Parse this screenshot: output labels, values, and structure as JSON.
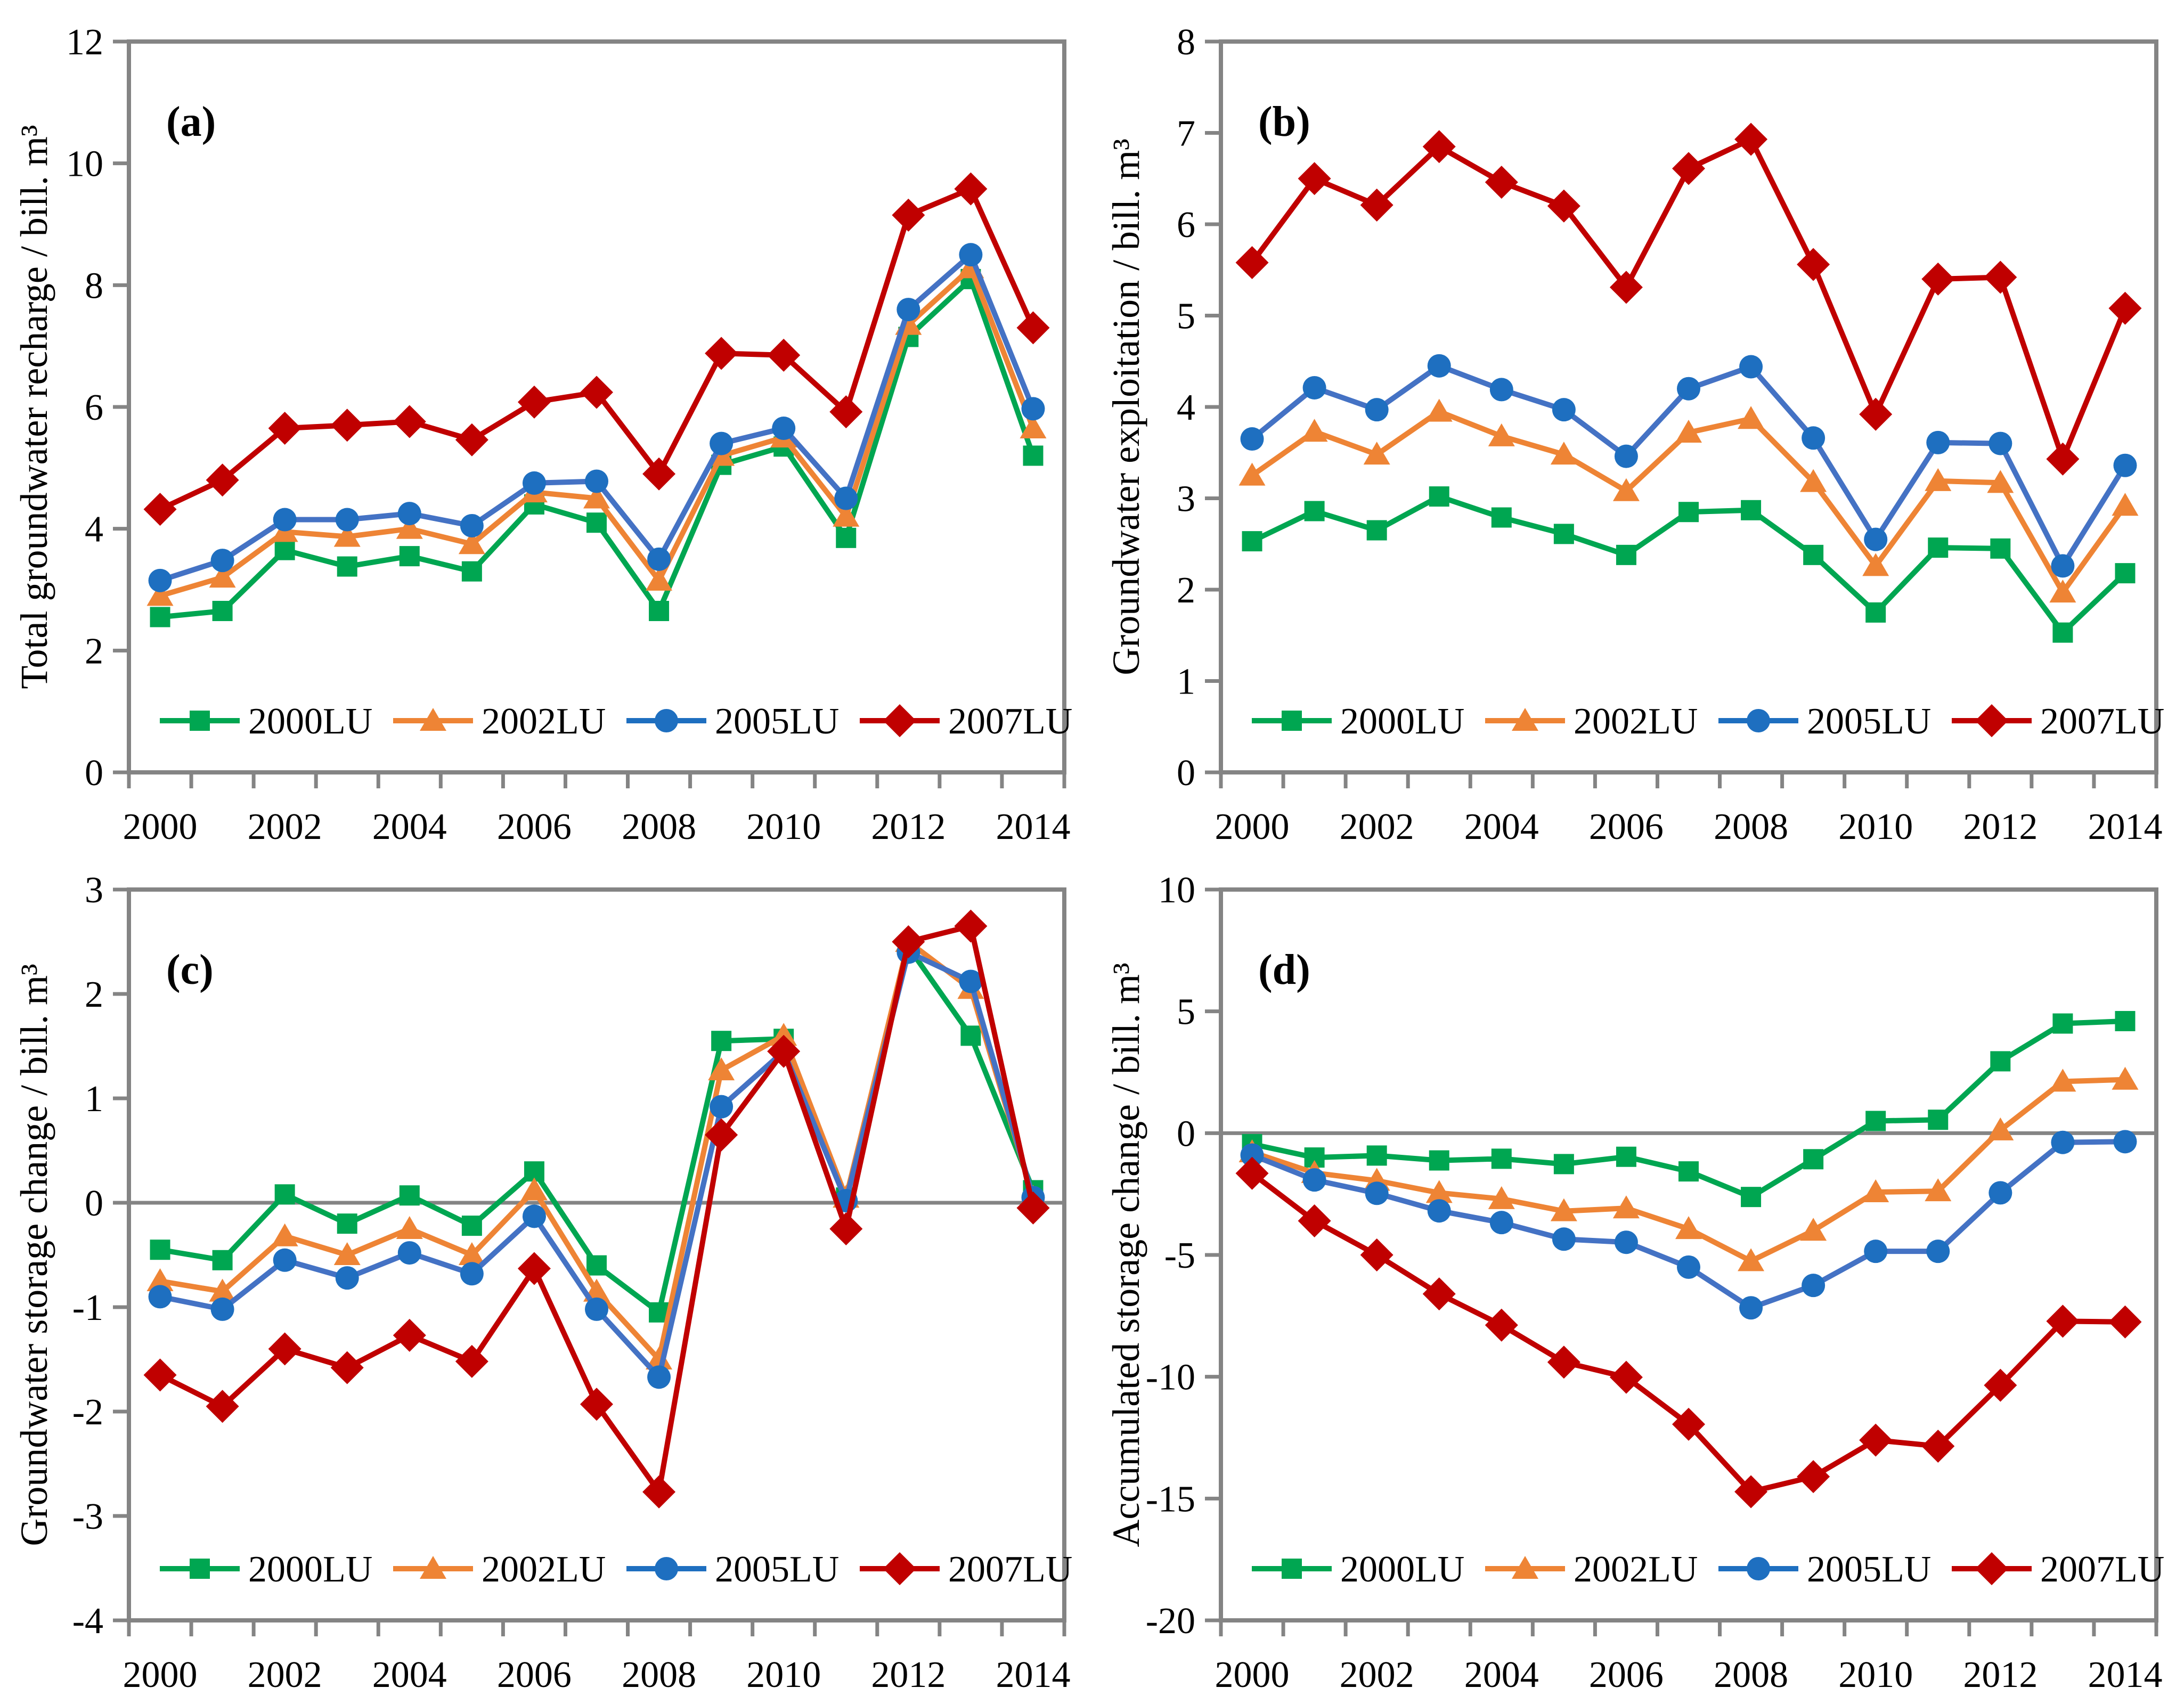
{
  "figure": {
    "background": "#ffffff",
    "frame_color": "#848484",
    "zero_line_color": "#848484",
    "text_color": "#000000"
  },
  "legend": {
    "items": [
      {
        "label": "2000LU",
        "marker": "square",
        "color": "#00A651"
      },
      {
        "label": "2002LU",
        "marker": "triangle",
        "color": "#EE8435"
      },
      {
        "label": "2005LU",
        "marker": "circle",
        "color": "#1E6FC0"
      },
      {
        "label": "2007LU",
        "marker": "diamond",
        "color": "#C00000"
      }
    ]
  },
  "x_axis": {
    "categories": [
      2000,
      2001,
      2002,
      2003,
      2004,
      2005,
      2006,
      2007,
      2008,
      2009,
      2010,
      2011,
      2012,
      2013,
      2014
    ],
    "tick_labels": [
      "2000",
      "2002",
      "2004",
      "2006",
      "2008",
      "2010",
      "2012",
      "2014"
    ],
    "labeled_indices": [
      0,
      2,
      4,
      6,
      8,
      10,
      12,
      14
    ]
  },
  "chart_data": [
    {
      "type": "line",
      "panel_label": "(a)",
      "ylabel": "Total groundwater recharge / bill. m³",
      "xlabel": "",
      "ylim": [
        0,
        12
      ],
      "yticks": [
        0,
        2,
        4,
        6,
        8,
        10,
        12
      ],
      "zero_line": false,
      "legend_position": "inside-bottom",
      "grid": false,
      "series": [
        {
          "name": "2000LU",
          "marker": "square",
          "line_color": "#00A651",
          "marker_color": "#00A651",
          "values": [
            2.55,
            2.65,
            3.65,
            3.38,
            3.55,
            3.3,
            4.4,
            4.1,
            2.65,
            5.05,
            5.35,
            3.85,
            7.15,
            8.1,
            5.2
          ]
        },
        {
          "name": "2002LU",
          "marker": "triangle",
          "line_color": "#EE8435",
          "marker_color": "#EE8435",
          "values": [
            2.9,
            3.2,
            3.95,
            3.87,
            4.0,
            3.75,
            4.6,
            4.5,
            3.15,
            5.2,
            5.5,
            4.2,
            7.35,
            8.28,
            5.65
          ]
        },
        {
          "name": "2005LU",
          "marker": "circle",
          "line_color": "#4472C4",
          "marker_color": "#1E6FC0",
          "values": [
            3.15,
            3.48,
            4.15,
            4.15,
            4.25,
            4.05,
            4.75,
            4.78,
            3.5,
            5.4,
            5.65,
            4.5,
            7.6,
            8.5,
            5.97
          ]
        },
        {
          "name": "2007LU",
          "marker": "diamond",
          "line_color": "#C00000",
          "marker_color": "#C00000",
          "values": [
            4.32,
            4.8,
            5.65,
            5.7,
            5.76,
            5.46,
            6.08,
            6.24,
            4.9,
            6.88,
            6.85,
            5.92,
            9.15,
            9.58,
            7.3
          ]
        }
      ]
    },
    {
      "type": "line",
      "panel_label": "(b)",
      "ylabel": "Groundwater exploitation / bill. m³",
      "xlabel": "",
      "ylim": [
        0,
        8
      ],
      "yticks": [
        0,
        1,
        2,
        3,
        4,
        5,
        6,
        7,
        8
      ],
      "zero_line": false,
      "legend_position": "inside-bottom",
      "grid": false,
      "series": [
        {
          "name": "2000LU",
          "marker": "square",
          "line_color": "#00A651",
          "marker_color": "#00A651",
          "values": [
            2.53,
            2.86,
            2.65,
            3.02,
            2.79,
            2.61,
            2.38,
            2.85,
            2.87,
            2.38,
            1.75,
            2.46,
            2.45,
            1.53,
            2.18
          ]
        },
        {
          "name": "2002LU",
          "marker": "triangle",
          "line_color": "#EE8435",
          "marker_color": "#EE8435",
          "values": [
            3.25,
            3.73,
            3.48,
            3.95,
            3.68,
            3.48,
            3.08,
            3.72,
            3.87,
            3.18,
            2.26,
            3.19,
            3.17,
            1.97,
            2.92
          ]
        },
        {
          "name": "2005LU",
          "marker": "circle",
          "line_color": "#4472C4",
          "marker_color": "#1E6FC0",
          "values": [
            3.65,
            4.21,
            3.97,
            4.45,
            4.19,
            3.97,
            3.46,
            4.2,
            4.44,
            3.66,
            2.55,
            3.61,
            3.6,
            2.26,
            3.36
          ]
        },
        {
          "name": "2007LU",
          "marker": "diamond",
          "line_color": "#C00000",
          "marker_color": "#C00000",
          "values": [
            5.58,
            6.5,
            6.21,
            6.85,
            6.46,
            6.2,
            5.31,
            6.61,
            6.93,
            5.56,
            3.92,
            5.4,
            5.42,
            3.43,
            5.08
          ]
        }
      ]
    },
    {
      "type": "line",
      "panel_label": "(c)",
      "ylabel": "Groundwater storage change / bill. m³",
      "xlabel": "",
      "ylim": [
        -4,
        3
      ],
      "yticks": [
        -4,
        -3,
        -2,
        -1,
        0,
        1,
        2,
        3
      ],
      "zero_line": true,
      "legend_position": "inside-bottom",
      "grid": false,
      "series": [
        {
          "name": "2000LU",
          "marker": "square",
          "line_color": "#00A651",
          "marker_color": "#00A651",
          "values": [
            -0.45,
            -0.55,
            0.08,
            -0.2,
            0.07,
            -0.22,
            0.3,
            -0.6,
            -1.05,
            1.55,
            1.57,
            0.05,
            2.45,
            1.6,
            0.12
          ]
        },
        {
          "name": "2002LU",
          "marker": "triangle",
          "line_color": "#EE8435",
          "marker_color": "#EE8435",
          "values": [
            -0.75,
            -0.85,
            -0.32,
            -0.5,
            -0.25,
            -0.5,
            0.12,
            -0.85,
            -1.5,
            1.27,
            1.6,
            0.05,
            2.5,
            2.05,
            0.05
          ]
        },
        {
          "name": "2005LU",
          "marker": "circle",
          "line_color": "#4472C4",
          "marker_color": "#1E6FC0",
          "values": [
            -0.9,
            -1.02,
            -0.55,
            -0.72,
            -0.48,
            -0.68,
            -0.13,
            -1.02,
            -1.67,
            0.92,
            1.45,
            0.02,
            2.4,
            2.12,
            0.05
          ]
        },
        {
          "name": "2007LU",
          "marker": "diamond",
          "line_color": "#C00000",
          "marker_color": "#C00000",
          "values": [
            -1.65,
            -1.95,
            -1.4,
            -1.58,
            -1.27,
            -1.52,
            -0.63,
            -1.93,
            -2.77,
            0.65,
            1.45,
            -0.25,
            2.5,
            2.65,
            -0.05
          ]
        }
      ]
    },
    {
      "type": "line",
      "panel_label": "(d)",
      "ylabel": "Accumulated storage change / bill. m³",
      "xlabel": "",
      "ylim": [
        -20,
        10
      ],
      "yticks": [
        -20,
        -15,
        -10,
        -5,
        0,
        5,
        10
      ],
      "zero_line": true,
      "legend_position": "inside-bottom",
      "grid": false,
      "series": [
        {
          "name": "2000LU",
          "marker": "square",
          "line_color": "#00A651",
          "marker_color": "#00A651",
          "values": [
            -0.45,
            -1.0,
            -0.92,
            -1.12,
            -1.05,
            -1.27,
            -0.97,
            -1.57,
            -2.62,
            -1.07,
            0.5,
            0.55,
            2.95,
            4.5,
            4.6
          ]
        },
        {
          "name": "2002LU",
          "marker": "triangle",
          "line_color": "#EE8435",
          "marker_color": "#EE8435",
          "values": [
            -0.78,
            -1.63,
            -1.95,
            -2.45,
            -2.7,
            -3.2,
            -3.08,
            -3.93,
            -5.25,
            -4.0,
            -2.42,
            -2.38,
            0.12,
            2.12,
            2.2
          ]
        },
        {
          "name": "2005LU",
          "marker": "circle",
          "line_color": "#4472C4",
          "marker_color": "#1E6FC0",
          "values": [
            -0.9,
            -1.92,
            -2.47,
            -3.19,
            -3.67,
            -4.35,
            -4.48,
            -5.5,
            -7.17,
            -6.25,
            -4.85,
            -4.85,
            -2.45,
            -0.38,
            -0.35
          ]
        },
        {
          "name": "2007LU",
          "marker": "diamond",
          "line_color": "#C00000",
          "marker_color": "#C00000",
          "values": [
            -1.65,
            -3.6,
            -5.0,
            -6.6,
            -7.88,
            -9.4,
            -10.02,
            -11.95,
            -14.72,
            -14.1,
            -12.6,
            -12.85,
            -10.35,
            -7.72,
            -7.75
          ]
        }
      ]
    }
  ]
}
